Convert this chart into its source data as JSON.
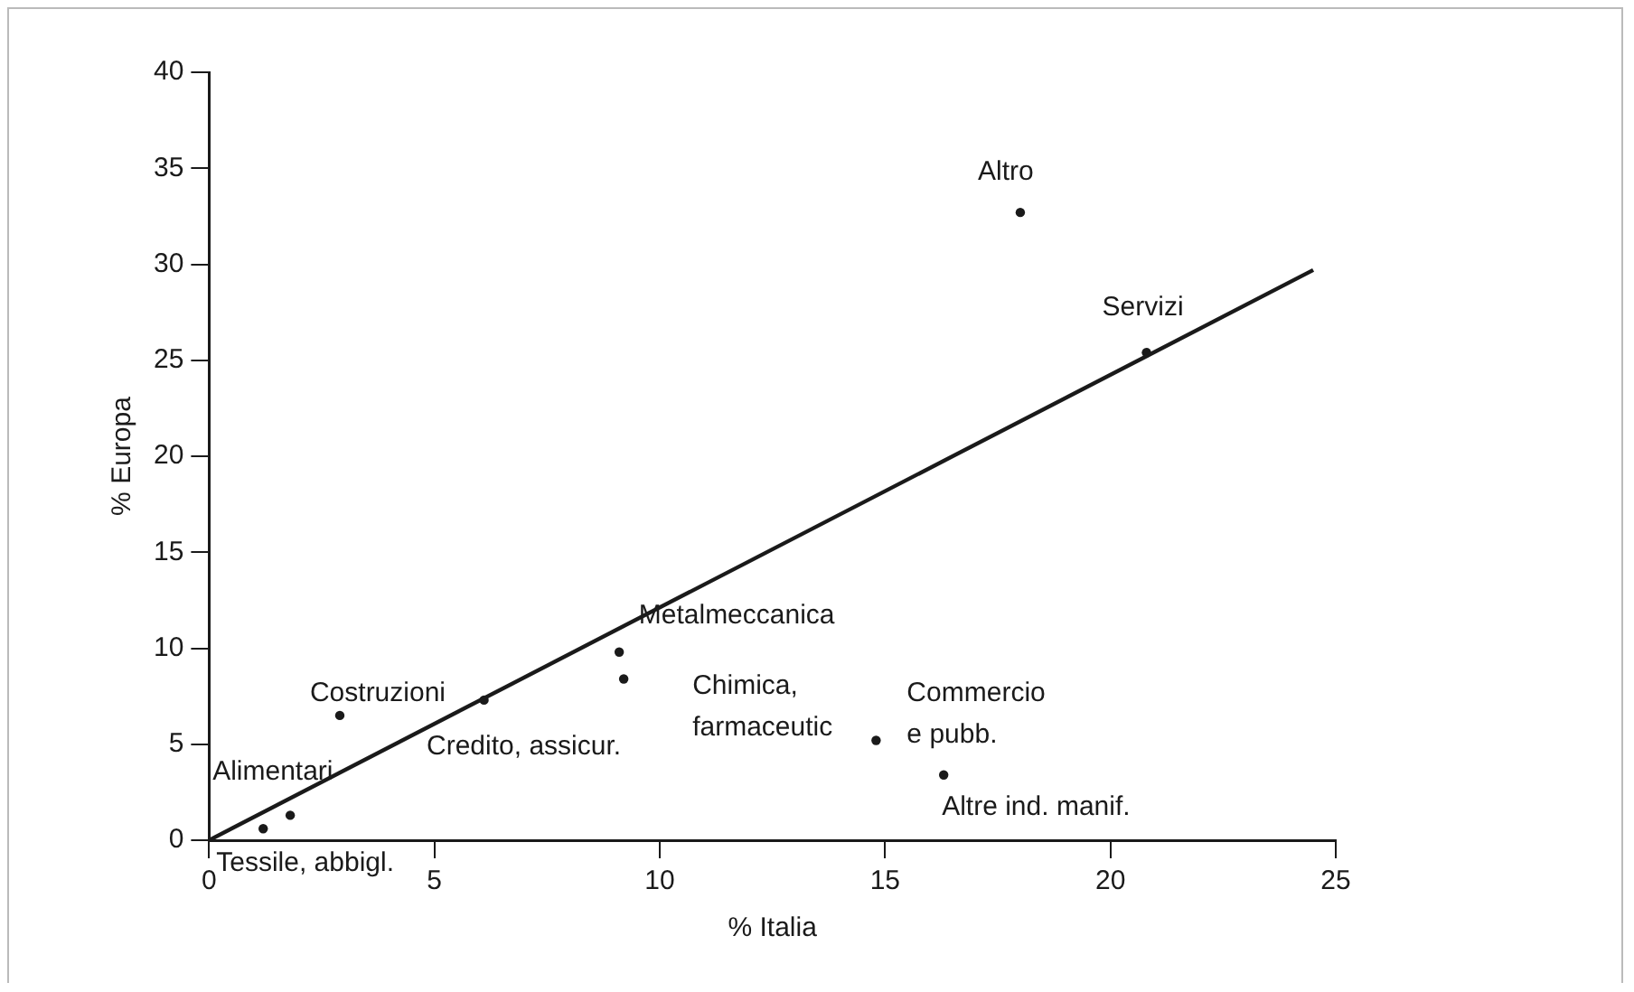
{
  "chart_data": {
    "type": "scatter",
    "xlabel": "% Italia",
    "ylabel": "% Europa",
    "xlim": [
      0,
      25
    ],
    "xticks": [
      0,
      5,
      10,
      15,
      20,
      25
    ],
    "ylim": [
      0,
      40
    ],
    "yticks": [
      0,
      5,
      10,
      15,
      20,
      25,
      30,
      35,
      40
    ],
    "grid": false,
    "legend": false,
    "marker": "circle",
    "series": [
      {
        "color": "#1a1a1a",
        "x": [
          1.2,
          1.8,
          2.9,
          6.1,
          9.1,
          9.2,
          14.8,
          16.3,
          18,
          20.8
        ],
        "values": [
          0.6,
          1.3,
          6.5,
          7.3,
          9.8,
          8.4,
          5.2,
          3.4,
          32.7,
          25.4
        ]
      },
      {
        "type": "line",
        "color": "#1a1a1a",
        "marker": "none",
        "line_style": "solid",
        "x": [
          0,
          24.5
        ],
        "values": [
          0,
          29.7
        ]
      }
    ],
    "annotations": [
      {
        "text": "Tessile, abbigl.",
        "x": 1.2,
        "y": 0.6
      },
      {
        "text": "Alimentari",
        "x": 1.8,
        "y": 1.3
      },
      {
        "text": "Costruzioni",
        "x": 2.9,
        "y": 6.5
      },
      {
        "text": "Credito, assicur.",
        "x": 6.1,
        "y": 7.3
      },
      {
        "text": "Metalmeccanica",
        "x": 9.1,
        "y": 9.8
      },
      {
        "text": "Chimica,\nfarmaceutic",
        "x": 9.2,
        "y": 8.4
      },
      {
        "text": "Commercio\ne pubb.",
        "x": 14.8,
        "y": 5.2
      },
      {
        "text": "Altre ind. manif.",
        "x": 16.3,
        "y": 3.4
      },
      {
        "text": "Altro",
        "x": 18,
        "y": 32.7
      },
      {
        "text": "Servizi",
        "x": 20.8,
        "y": 25.4
      }
    ]
  }
}
